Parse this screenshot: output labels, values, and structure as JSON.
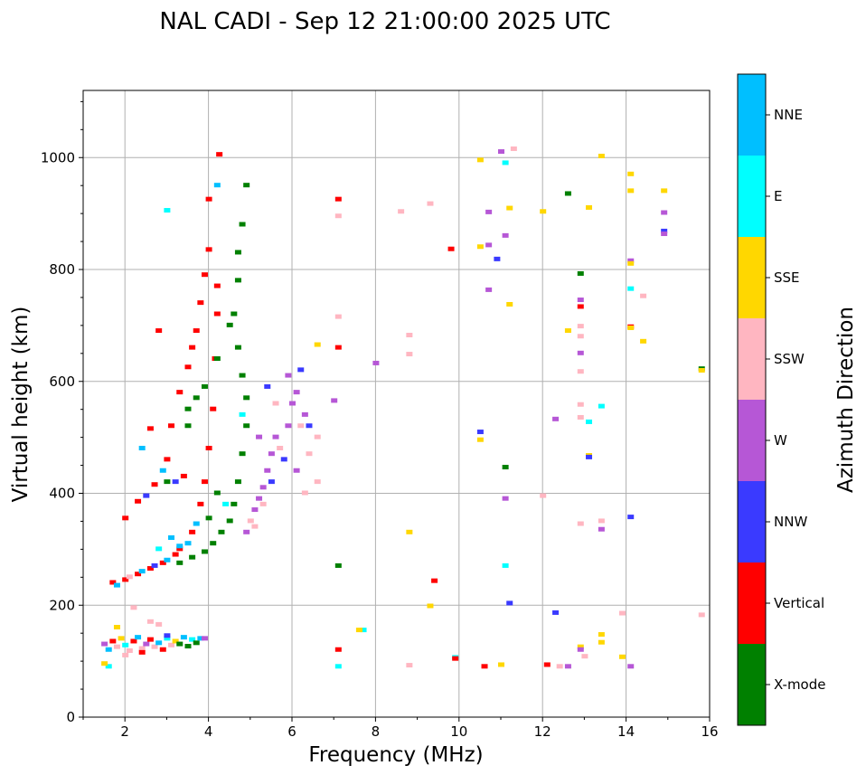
{
  "chart_data": {
    "type": "scatter",
    "title": "NAL CADI - Sep 12 21:00:00 2025 UTC",
    "xlabel": "Frequency (MHz)",
    "ylabel": "Virtual height (km)",
    "xlim": [
      1,
      16
    ],
    "ylim": [
      0,
      1120
    ],
    "xticks": [
      2,
      4,
      6,
      8,
      10,
      12,
      14,
      16
    ],
    "yticks": [
      0,
      200,
      400,
      600,
      800,
      1000
    ],
    "grid": true,
    "colorbar": {
      "label": "Azimuth Direction",
      "categories": [
        "X-mode",
        "Vertical",
        "NNW",
        "W",
        "SSW",
        "SSE",
        "E",
        "NNE"
      ],
      "colors": [
        "#008000",
        "#ff0000",
        "#3a3aff",
        "#b657d6",
        "#ffb6c1",
        "#ffd700",
        "#00ffff",
        "#00bfff"
      ]
    },
    "points": [
      [
        1.5,
        130,
        3
      ],
      [
        1.6,
        120,
        7
      ],
      [
        1.7,
        135,
        1
      ],
      [
        1.8,
        125,
        4
      ],
      [
        1.9,
        140,
        5
      ],
      [
        2.0,
        128,
        6
      ],
      [
        2.1,
        118,
        4
      ],
      [
        2.2,
        135,
        1
      ],
      [
        2.3,
        142,
        7
      ],
      [
        2.4,
        122,
        4
      ],
      [
        2.5,
        130,
        3
      ],
      [
        2.6,
        138,
        1
      ],
      [
        2.7,
        125,
        4
      ],
      [
        2.8,
        132,
        7
      ],
      [
        2.9,
        120,
        1
      ],
      [
        3.0,
        140,
        6
      ],
      [
        3.1,
        128,
        4
      ],
      [
        3.2,
        135,
        5
      ],
      [
        3.3,
        130,
        0
      ],
      [
        3.4,
        142,
        7
      ],
      [
        3.5,
        126,
        0
      ],
      [
        3.6,
        138,
        6
      ],
      [
        3.7,
        132,
        0
      ],
      [
        3.8,
        140,
        7
      ],
      [
        1.6,
        90,
        6
      ],
      [
        1.8,
        160,
        5
      ],
      [
        2.2,
        195,
        4
      ],
      [
        2.6,
        170,
        4
      ],
      [
        2.0,
        110,
        4
      ],
      [
        2.4,
        115,
        1
      ],
      [
        3.0,
        145,
        2
      ],
      [
        3.9,
        140,
        3
      ],
      [
        1.5,
        95,
        5
      ],
      [
        2.8,
        165,
        4
      ],
      [
        1.7,
        240,
        1
      ],
      [
        1.8,
        235,
        7
      ],
      [
        2.0,
        245,
        1
      ],
      [
        2.1,
        250,
        4
      ],
      [
        2.3,
        255,
        1
      ],
      [
        2.4,
        260,
        7
      ],
      [
        2.6,
        265,
        1
      ],
      [
        2.7,
        270,
        2
      ],
      [
        2.9,
        275,
        1
      ],
      [
        3.0,
        280,
        7
      ],
      [
        3.2,
        290,
        1
      ],
      [
        3.3,
        300,
        1
      ],
      [
        3.5,
        310,
        7
      ],
      [
        3.6,
        330,
        1
      ],
      [
        3.7,
        345,
        7
      ],
      [
        3.8,
        380,
        1
      ],
      [
        3.9,
        420,
        1
      ],
      [
        4.0,
        480,
        1
      ],
      [
        4.1,
        550,
        1
      ],
      [
        4.15,
        640,
        1
      ],
      [
        4.2,
        720,
        1
      ],
      [
        4.2,
        770,
        1
      ],
      [
        4.0,
        835,
        1
      ],
      [
        4.0,
        925,
        1
      ],
      [
        4.25,
        1005,
        1
      ],
      [
        4.2,
        950,
        7
      ],
      [
        3.3,
        305,
        7
      ],
      [
        2.8,
        300,
        6
      ],
      [
        3.1,
        320,
        7
      ],
      [
        2.0,
        355,
        1
      ],
      [
        2.3,
        385,
        1
      ],
      [
        2.5,
        395,
        2
      ],
      [
        2.7,
        415,
        1
      ],
      [
        2.9,
        440,
        7
      ],
      [
        3.0,
        460,
        1
      ],
      [
        3.1,
        520,
        1
      ],
      [
        3.3,
        580,
        1
      ],
      [
        3.5,
        625,
        1
      ],
      [
        3.6,
        660,
        1
      ],
      [
        3.7,
        690,
        1
      ],
      [
        3.8,
        740,
        1
      ],
      [
        3.9,
        790,
        1
      ],
      [
        2.8,
        690,
        1
      ],
      [
        2.6,
        515,
        1
      ],
      [
        3.0,
        905,
        6
      ],
      [
        2.4,
        480,
        7
      ],
      [
        3.2,
        420,
        2
      ],
      [
        3.4,
        430,
        1
      ],
      [
        3.3,
        275,
        0
      ],
      [
        3.6,
        285,
        0
      ],
      [
        3.9,
        295,
        0
      ],
      [
        4.1,
        310,
        0
      ],
      [
        4.3,
        330,
        0
      ],
      [
        4.5,
        350,
        0
      ],
      [
        4.6,
        380,
        0
      ],
      [
        4.7,
        420,
        0
      ],
      [
        4.8,
        470,
        0
      ],
      [
        4.9,
        520,
        0
      ],
      [
        4.9,
        570,
        0
      ],
      [
        4.8,
        610,
        0
      ],
      [
        4.7,
        660,
        0
      ],
      [
        4.6,
        720,
        0
      ],
      [
        4.7,
        780,
        0
      ],
      [
        4.7,
        830,
        0
      ],
      [
        4.8,
        880,
        0
      ],
      [
        4.9,
        950,
        0
      ],
      [
        3.5,
        550,
        0
      ],
      [
        3.7,
        570,
        0
      ],
      [
        3.9,
        590,
        0
      ],
      [
        4.2,
        640,
        0
      ],
      [
        4.5,
        700,
        0
      ],
      [
        3.0,
        420,
        0
      ],
      [
        3.5,
        520,
        0
      ],
      [
        4.0,
        355,
        0
      ],
      [
        4.2,
        400,
        0
      ],
      [
        4.4,
        380,
        6
      ],
      [
        4.8,
        540,
        6
      ],
      [
        4.9,
        330,
        3
      ],
      [
        5.0,
        350,
        4
      ],
      [
        5.1,
        370,
        3
      ],
      [
        5.2,
        390,
        3
      ],
      [
        5.3,
        410,
        3
      ],
      [
        5.4,
        440,
        3
      ],
      [
        5.5,
        470,
        3
      ],
      [
        5.6,
        500,
        3
      ],
      [
        5.7,
        480,
        4
      ],
      [
        5.9,
        520,
        3
      ],
      [
        6.0,
        560,
        3
      ],
      [
        6.1,
        580,
        3
      ],
      [
        6.2,
        620,
        2
      ],
      [
        6.3,
        540,
        3
      ],
      [
        6.4,
        520,
        2
      ],
      [
        6.6,
        500,
        4
      ],
      [
        6.6,
        420,
        4
      ],
      [
        6.3,
        400,
        4
      ],
      [
        6.1,
        440,
        3
      ],
      [
        5.8,
        460,
        2
      ],
      [
        5.5,
        420,
        2
      ],
      [
        5.3,
        380,
        4
      ],
      [
        5.1,
        340,
        4
      ],
      [
        5.2,
        500,
        3
      ],
      [
        5.6,
        560,
        4
      ],
      [
        5.9,
        610,
        3
      ],
      [
        6.4,
        470,
        4
      ],
      [
        6.2,
        520,
        4
      ],
      [
        5.4,
        590,
        2
      ],
      [
        7.1,
        925,
        1
      ],
      [
        7.1,
        895,
        4
      ],
      [
        7.1,
        715,
        4
      ],
      [
        7.1,
        660,
        1
      ],
      [
        7.0,
        565,
        3
      ],
      [
        7.1,
        270,
        0
      ],
      [
        7.1,
        120,
        1
      ],
      [
        7.1,
        90,
        6
      ],
      [
        6.6,
        665,
        5
      ],
      [
        7.7,
        155,
        6
      ],
      [
        7.6,
        155,
        5
      ],
      [
        8.0,
        632,
        3
      ],
      [
        8.6,
        903,
        4
      ],
      [
        8.8,
        682,
        4
      ],
      [
        8.8,
        648,
        4
      ],
      [
        8.8,
        330,
        5
      ],
      [
        8.8,
        92,
        4
      ],
      [
        9.3,
        917,
        4
      ],
      [
        9.3,
        198,
        5
      ],
      [
        9.4,
        243,
        1
      ],
      [
        9.8,
        836,
        1
      ],
      [
        9.9,
        106,
        6
      ],
      [
        9.9,
        104,
        1
      ],
      [
        10.5,
        995,
        5
      ],
      [
        10.5,
        840,
        5
      ],
      [
        10.5,
        509,
        2
      ],
      [
        10.5,
        495,
        5
      ],
      [
        10.6,
        90,
        1
      ],
      [
        10.7,
        902,
        3
      ],
      [
        10.7,
        843,
        3
      ],
      [
        10.7,
        763,
        3
      ],
      [
        10.9,
        818,
        2
      ],
      [
        11.0,
        1010,
        3
      ],
      [
        11.0,
        93,
        5
      ],
      [
        11.1,
        990,
        6
      ],
      [
        11.1,
        860,
        3
      ],
      [
        11.1,
        446,
        0
      ],
      [
        11.1,
        390,
        3
      ],
      [
        11.1,
        270,
        6
      ],
      [
        11.2,
        909,
        5
      ],
      [
        11.2,
        737,
        5
      ],
      [
        11.2,
        203,
        2
      ],
      [
        11.3,
        1015,
        4
      ],
      [
        12.0,
        903,
        5
      ],
      [
        12.0,
        395,
        4
      ],
      [
        12.1,
        93,
        1
      ],
      [
        12.3,
        532,
        3
      ],
      [
        12.3,
        186,
        2
      ],
      [
        12.4,
        90,
        4
      ],
      [
        12.6,
        935,
        0
      ],
      [
        12.6,
        90,
        3
      ],
      [
        12.6,
        690,
        5
      ],
      [
        12.9,
        792,
        0
      ],
      [
        12.9,
        745,
        3
      ],
      [
        12.9,
        733,
        1
      ],
      [
        12.9,
        698,
        4
      ],
      [
        12.9,
        680,
        4
      ],
      [
        12.9,
        650,
        3
      ],
      [
        12.9,
        617,
        4
      ],
      [
        12.9,
        558,
        4
      ],
      [
        12.9,
        535,
        4
      ],
      [
        12.9,
        345,
        4
      ],
      [
        12.9,
        125,
        5
      ],
      [
        12.9,
        120,
        3
      ],
      [
        13.0,
        108,
        4
      ],
      [
        13.1,
        910,
        5
      ],
      [
        13.1,
        527,
        6
      ],
      [
        13.1,
        467,
        5
      ],
      [
        13.1,
        464,
        2
      ],
      [
        13.4,
        1002,
        5
      ],
      [
        13.4,
        555,
        6
      ],
      [
        13.4,
        350,
        4
      ],
      [
        13.4,
        335,
        3
      ],
      [
        13.4,
        147,
        5
      ],
      [
        13.4,
        133,
        5
      ],
      [
        13.9,
        185,
        4
      ],
      [
        13.9,
        107,
        5
      ],
      [
        14.1,
        970,
        5
      ],
      [
        14.1,
        940,
        5
      ],
      [
        14.1,
        815,
        3
      ],
      [
        14.1,
        810,
        5
      ],
      [
        14.1,
        765,
        6
      ],
      [
        14.1,
        697,
        1
      ],
      [
        14.1,
        695,
        5
      ],
      [
        14.1,
        357,
        2
      ],
      [
        14.1,
        90,
        3
      ],
      [
        14.4,
        752,
        4
      ],
      [
        14.4,
        671,
        5
      ],
      [
        14.9,
        940,
        5
      ],
      [
        14.9,
        901,
        3
      ],
      [
        14.9,
        868,
        2
      ],
      [
        14.9,
        863,
        3
      ],
      [
        15.8,
        622,
        0
      ],
      [
        15.8,
        619,
        5
      ],
      [
        15.8,
        182,
        4
      ]
    ]
  }
}
